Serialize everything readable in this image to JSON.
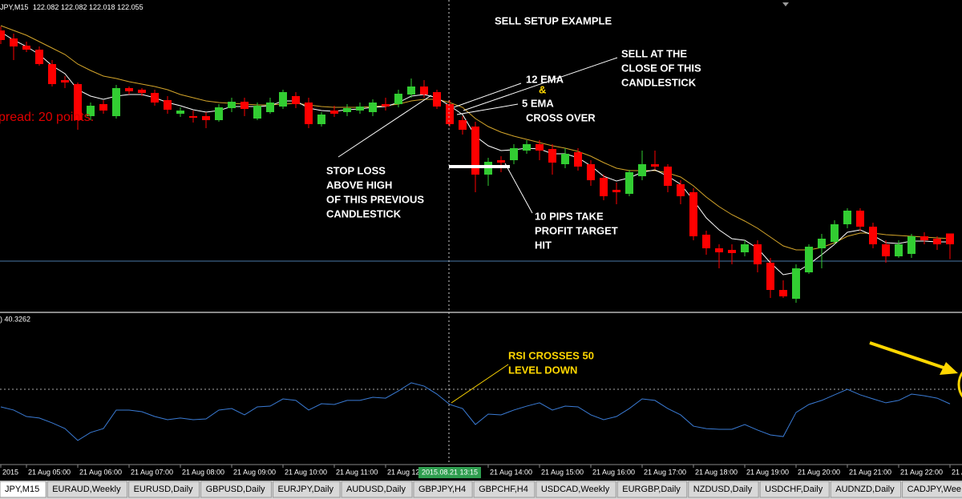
{
  "chart_data": [
    {
      "type": "candlestick",
      "symbol": "JPY,M15",
      "categories": [
        "2015",
        null,
        "21 Aug 05:00",
        null,
        null,
        null,
        "21 Aug 06:00",
        null,
        null,
        null,
        "21 Aug 07:00",
        null,
        null,
        null,
        "21 Aug 08:00",
        null,
        null,
        null,
        "21 Aug 09:00",
        null,
        null,
        null,
        "21 Aug 10:00",
        null,
        null,
        null,
        "21 Aug 11:00",
        null,
        null,
        null,
        "21 Aug 12",
        null,
        null,
        null,
        null,
        null,
        null,
        null,
        "21 Aug 14:00",
        null,
        null,
        null,
        "21 Aug 15:00",
        null,
        null,
        null,
        "21 Aug 16:00",
        null,
        null,
        null,
        "21 Aug 17:00",
        null,
        null,
        null,
        "21 Aug 18:00",
        null,
        null,
        null,
        "21 Aug 19:00",
        null,
        null,
        null,
        "21 Aug 20:00",
        null,
        null,
        null,
        "21 Aug 21:00",
        null,
        null,
        null,
        "21 Aug 22:00",
        null,
        null,
        null,
        "21 A"
      ],
      "open": [
        122.589,
        122.569,
        122.551,
        122.541,
        122.505,
        122.465,
        122.455,
        122.375,
        122.405,
        122.375,
        122.445,
        122.441,
        122.433,
        122.415,
        122.381,
        122.375,
        122.375,
        122.365,
        122.395,
        122.411,
        122.369,
        122.385,
        122.399,
        122.425,
        122.409,
        122.355,
        122.389,
        122.385,
        122.389,
        122.385,
        122.405,
        122.405,
        122.429,
        122.449,
        122.435,
        122.405,
        122.365,
        122.349,
        122.229,
        122.265,
        122.265,
        122.289,
        122.305,
        122.293,
        122.255,
        122.285,
        122.255,
        122.221,
        122.191,
        122.181,
        122.225,
        122.255,
        122.249,
        122.205,
        122.185,
        122.079,
        122.045,
        122.041,
        122.035,
        122.055,
        122.009,
        121.941,
        121.919,
        121.985,
        122.045,
        122.061,
        122.105,
        122.139,
        122.099,
        122.055,
        122.025,
        122.031,
        122.075,
        122.069,
        122.082
      ],
      "high": [
        122.599,
        122.581,
        122.561,
        122.549,
        122.515,
        122.475,
        122.459,
        122.409,
        122.415,
        122.453,
        122.449,
        122.445,
        122.441,
        122.425,
        122.397,
        122.389,
        122.385,
        122.405,
        122.421,
        122.421,
        122.409,
        122.421,
        122.441,
        122.435,
        122.421,
        122.385,
        122.401,
        122.405,
        122.409,
        122.417,
        122.421,
        122.441,
        122.469,
        122.465,
        122.441,
        122.415,
        122.375,
        122.361,
        122.271,
        122.275,
        122.305,
        122.315,
        122.315,
        122.305,
        122.295,
        122.295,
        122.265,
        122.229,
        122.209,
        122.241,
        122.289,
        122.289,
        122.255,
        122.215,
        122.195,
        122.089,
        122.055,
        122.055,
        122.065,
        122.065,
        122.021,
        121.965,
        122.005,
        122.055,
        122.081,
        122.115,
        122.145,
        122.145,
        122.109,
        122.065,
        122.065,
        122.081,
        122.085,
        122.075,
        122.082
      ],
      "low": [
        122.555,
        122.515,
        122.535,
        122.501,
        122.449,
        122.445,
        122.341,
        122.365,
        122.381,
        122.369,
        122.429,
        122.425,
        122.401,
        122.381,
        122.373,
        122.359,
        122.345,
        122.361,
        122.385,
        122.375,
        122.365,
        122.381,
        122.393,
        122.395,
        122.345,
        122.349,
        122.373,
        122.375,
        122.381,
        122.375,
        122.389,
        122.397,
        122.421,
        122.421,
        122.393,
        122.349,
        122.329,
        122.185,
        122.201,
        122.235,
        122.255,
        122.281,
        122.265,
        122.229,
        122.245,
        122.239,
        122.201,
        122.165,
        122.155,
        122.175,
        122.215,
        122.241,
        122.185,
        122.155,
        122.065,
        122.029,
        121.995,
        122.005,
        122.025,
        121.985,
        121.921,
        121.921,
        121.909,
        121.981,
        121.995,
        122.055,
        122.095,
        122.089,
        122.045,
        122.009,
        122.021,
        122.021,
        122.055,
        122.041,
        122.018
      ],
      "close": [
        122.565,
        122.549,
        122.541,
        122.505,
        122.455,
        122.459,
        122.365,
        122.401,
        122.389,
        122.445,
        122.437,
        122.433,
        122.409,
        122.391,
        122.389,
        122.371,
        122.365,
        122.397,
        122.411,
        122.393,
        122.401,
        122.409,
        122.435,
        122.405,
        122.355,
        122.379,
        122.381,
        122.395,
        122.399,
        122.409,
        122.399,
        122.431,
        122.449,
        122.429,
        122.399,
        122.355,
        122.341,
        122.229,
        122.261,
        122.259,
        122.295,
        122.305,
        122.289,
        122.259,
        122.281,
        122.249,
        122.215,
        122.175,
        122.185,
        122.235,
        122.255,
        122.249,
        122.201,
        122.175,
        122.075,
        122.045,
        122.035,
        122.033,
        122.055,
        122.005,
        121.941,
        121.925,
        121.995,
        122.049,
        122.069,
        122.105,
        122.139,
        122.099,
        122.055,
        122.025,
        122.055,
        122.075,
        122.065,
        122.055,
        122.055
      ],
      "up_color": "#32cd32",
      "down_color": "#ff0000",
      "lines": [
        {
          "color": "#d4a52a",
          "values": [
            122.601,
            122.589,
            122.577,
            122.561,
            122.545,
            122.529,
            122.505,
            122.489,
            122.475,
            122.469,
            122.461,
            122.455,
            122.449,
            122.441,
            122.429,
            122.421,
            122.413,
            122.409,
            122.407,
            122.405,
            122.403,
            122.403,
            122.405,
            122.407,
            122.403,
            122.399,
            122.397,
            122.397,
            122.397,
            122.399,
            122.401,
            122.405,
            122.413,
            122.417,
            122.417,
            122.409,
            122.397,
            122.369,
            122.349,
            122.335,
            122.325,
            122.317,
            122.309,
            122.301,
            122.295,
            122.287,
            122.275,
            122.259,
            122.245,
            122.239,
            122.239,
            122.239,
            122.233,
            122.223,
            122.201,
            122.173,
            122.149,
            122.129,
            122.113,
            122.095,
            122.073,
            122.051,
            122.041,
            122.041,
            122.047,
            122.059,
            122.075,
            122.083,
            122.083,
            122.079,
            122.077,
            122.075,
            122.073,
            122.071,
            122.069
          ]
        },
        {
          "color": "#ffffff",
          "values": [
            122.585,
            122.565,
            122.549,
            122.529,
            122.501,
            122.481,
            122.441,
            122.425,
            122.417,
            122.425,
            122.429,
            122.429,
            122.421,
            122.409,
            122.401,
            122.391,
            122.385,
            122.389,
            122.399,
            122.399,
            122.399,
            122.401,
            122.413,
            122.413,
            122.395,
            122.389,
            122.387,
            122.391,
            122.393,
            122.397,
            122.399,
            122.409,
            122.425,
            122.429,
            122.421,
            122.401,
            122.379,
            122.325,
            122.301,
            122.289,
            122.291,
            122.295,
            122.293,
            122.281,
            122.281,
            122.271,
            122.251,
            122.225,
            122.213,
            122.221,
            122.235,
            122.241,
            122.225,
            122.205,
            122.165,
            122.121,
            122.091,
            122.069,
            122.065,
            122.045,
            122.009,
            121.979,
            121.985,
            122.005,
            122.029,
            122.055,
            122.085,
            122.091,
            122.077,
            122.059,
            122.057,
            122.063,
            122.063,
            122.061,
            122.061
          ]
        }
      ],
      "ylim": [
        121.889,
        122.665
      ]
    },
    {
      "type": "line",
      "header": ") 40.3262",
      "color": "#3a7bd5",
      "values": [
        38.3,
        36.2,
        31.9,
        30.9,
        27.7,
        23.9,
        16.0,
        21.3,
        23.9,
        36.2,
        36.2,
        35.1,
        31.9,
        29.8,
        30.9,
        29.8,
        30.3,
        36.2,
        37.2,
        33.0,
        38.3,
        38.8,
        43.6,
        42.6,
        36.2,
        40.4,
        39.9,
        42.6,
        42.6,
        44.7,
        44.1,
        48.9,
        54.3,
        52.1,
        46.8,
        39.9,
        37.2,
        26.6,
        33.5,
        33.0,
        36.2,
        38.8,
        41.0,
        36.2,
        38.8,
        38.3,
        33.0,
        29.8,
        31.9,
        37.2,
        43.6,
        42.6,
        37.2,
        33.0,
        25.5,
        23.9,
        23.4,
        23.4,
        26.6,
        22.9,
        19.7,
        18.6,
        34.6,
        39.9,
        42.6,
        46.3,
        50.0,
        46.3,
        43.6,
        41.0,
        42.6,
        46.8,
        45.7,
        44.1,
        40.3
      ],
      "levels": [
        50
      ],
      "ylim": [
        0,
        100
      ]
    }
  ],
  "annotations": {
    "title": "SELL SETUP EXAMPLE",
    "sell_at_close": [
      "SELL AT THE",
      "CLOSE OF THIS",
      "CANDLESTICK"
    ],
    "ema12": "12 EMA",
    "amp": "&",
    "ema5": "5 EMA",
    "cross_over": "CROSS OVER",
    "stop_loss": [
      "STOP LOSS",
      "ABOVE HIGH",
      "OF THIS PREVIOUS",
      "CANDLESTICK"
    ],
    "take_profit": [
      "10 PIPS TAKE",
      "PROFIT TARGET",
      "HIT"
    ],
    "spread": "pread: 20 points.",
    "rsi_note": [
      "RSI CROSSES 50",
      "LEVEL DOWN"
    ]
  },
  "crosshair_time": "2015.08.21 13:15",
  "tabs": [
    "JPY,M15",
    "EURAUD,Weekly",
    "EURUSD,Daily",
    "GBPUSD,Daily",
    "EURJPY,Daily",
    "AUDUSD,Daily",
    "GBPJPY,H4",
    "GBPCHF,H4",
    "USDCAD,Weekly",
    "EURGBP,Daily",
    "NZDUSD,Daily",
    "USDCHF,Daily",
    "AUDNZD,Daily",
    "CADJPY,Wee"
  ]
}
